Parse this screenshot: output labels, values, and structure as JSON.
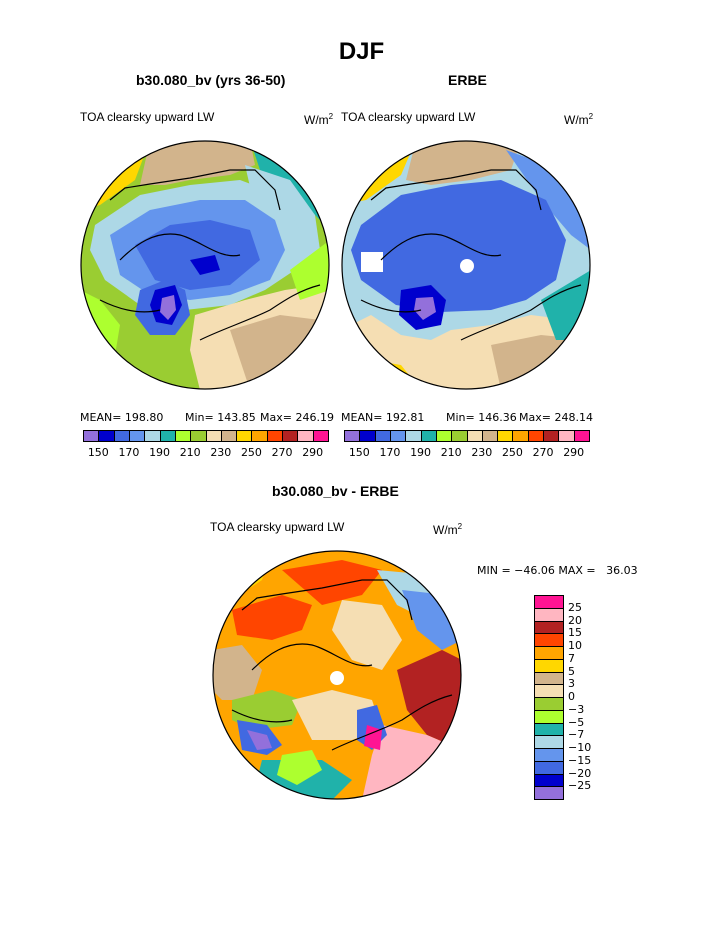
{
  "title": "DJF",
  "units_prefix": "W/m",
  "units_exp": "2",
  "colors": {
    "scale1": [
      "#9370DB",
      "#0000CD",
      "#4169E1",
      "#6495ED",
      "#ADD8E6",
      "#20B2AA",
      "#ADFF2F",
      "#9ACD32",
      "#F5DEB3",
      "#D2B48C",
      "#FFD700",
      "#FFA500",
      "#FF4500",
      "#B22222",
      "#FFB6C1",
      "#FF1493"
    ],
    "scale2": [
      "#9370DB",
      "#0000CD",
      "#4169E1",
      "#6495ED",
      "#ADD8E6",
      "#20B2AA",
      "#ADFF2F",
      "#9ACD32",
      "#F5DEB3",
      "#D2B48C",
      "#FFD700",
      "#FFA500",
      "#FF4500",
      "#B22222",
      "#FFB6C1",
      "#FF1493"
    ]
  },
  "chart_data": [
    {
      "type": "heatmap",
      "projection": "north polar stereographic",
      "title": "b30.080_bv (yrs 36-50)",
      "variable": "TOA clearsky upward LW",
      "stats": {
        "mean": "MEAN= 198.80",
        "min": "Min= 143.85",
        "max": "Max= 246.19"
      },
      "colorbar_labels": [
        "150",
        "170",
        "190",
        "210",
        "230",
        "250",
        "270",
        "290"
      ],
      "levels": [
        150,
        160,
        170,
        180,
        190,
        200,
        210,
        220,
        230,
        240,
        250,
        260,
        270,
        280,
        290
      ]
    },
    {
      "type": "heatmap",
      "projection": "north polar stereographic",
      "title": "ERBE",
      "variable": "TOA clearsky upward LW",
      "stats": {
        "mean": "MEAN= 192.81",
        "min": "Min= 146.36",
        "max": "Max= 248.14"
      },
      "colorbar_labels": [
        "150",
        "170",
        "190",
        "210",
        "230",
        "250",
        "270",
        "290"
      ],
      "levels": [
        150,
        160,
        170,
        180,
        190,
        200,
        210,
        220,
        230,
        240,
        250,
        260,
        270,
        280,
        290
      ]
    },
    {
      "type": "heatmap",
      "projection": "north polar stereographic",
      "title": "b30.080_bv - ERBE",
      "variable": "TOA clearsky upward LW",
      "stats": {
        "minmax": "MIN = −46.06 MAX =   36.03"
      },
      "colorbar_labels": [
        "25",
        "20",
        "15",
        "10",
        "7",
        "5",
        "3",
        "0",
        "−3",
        "−5",
        "−7",
        "−10",
        "−15",
        "−20",
        "−25"
      ],
      "levels": [
        25,
        20,
        15,
        10,
        7,
        5,
        3,
        0,
        -3,
        -5,
        -7,
        -10,
        -15,
        -20,
        -25
      ]
    }
  ]
}
